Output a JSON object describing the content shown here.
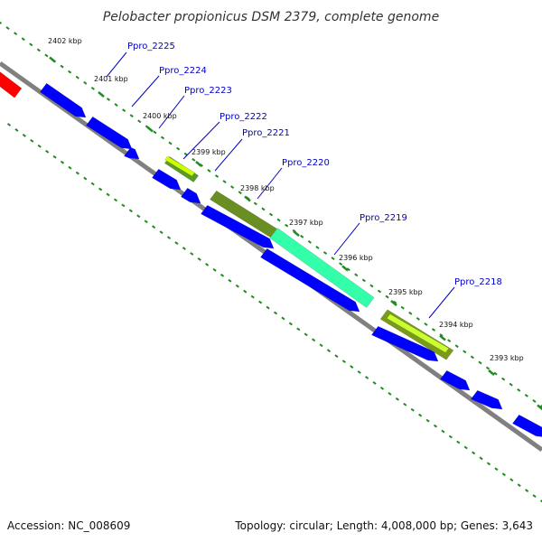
{
  "title": "Pelobacter propionicus DSM 2379, complete genome",
  "footer": {
    "accession": "Accession: NC_008609",
    "topology": "Topology: circular; Length: 4,008,000 bp; Genes: 3,643"
  },
  "colors": {
    "backbone": "#808080",
    "cds": "#0000ff",
    "rna": "#ff0000",
    "ticks": "#228b22",
    "label": "#0000cc"
  },
  "kbp_labels": [
    "2402 kbp",
    "2401 kbp",
    "2400 kbp",
    "2399 kbp",
    "2398 kbp",
    "2397 kbp",
    "2396 kbp",
    "2395 kbp",
    "2394 kbp",
    "2393 kbp"
  ],
  "gene_labels": [
    "Ppro_2225",
    "Ppro_2224",
    "Ppro_2223",
    "Ppro_2222",
    "Ppro_2221",
    "Ppro_2220",
    "Ppro_2219",
    "Ppro_2218"
  ]
}
